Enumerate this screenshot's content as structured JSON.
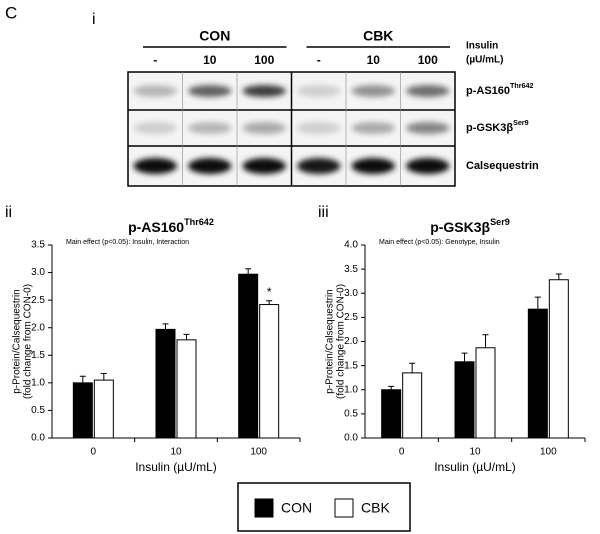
{
  "panel_label": "C",
  "blot": {
    "label": "i",
    "groups": [
      "CON",
      "CBK"
    ],
    "lanes": [
      "-",
      "10",
      "100",
      "-",
      "10",
      "100"
    ],
    "lane_header": [
      "Insulin",
      "(µU/mL)"
    ],
    "rows": [
      {
        "base": "p-AS160",
        "sup": "Thr642"
      },
      {
        "base": "p-GSK3β",
        "sup": "Ser9"
      },
      {
        "base": "Calsequestrin",
        "sup": ""
      }
    ]
  },
  "legend_title": null,
  "chart_data": [
    {
      "type": "bar",
      "panel": "ii",
      "title": {
        "base": "p-AS160",
        "sup": "Thr642"
      },
      "annotation": "Main effect (p<0.05): Insulin, Interaction",
      "ylabel": [
        "p-Protein/Calsequestrin",
        "(fold change from CON-0)"
      ],
      "xlabel": "Insulin (µU/mL)",
      "categories": [
        "0",
        "10",
        "100"
      ],
      "series": [
        {
          "name": "CON",
          "color": "#000000",
          "values": [
            1.0,
            1.97,
            2.97
          ],
          "errors": [
            0.12,
            0.1,
            0.1
          ]
        },
        {
          "name": "CBK",
          "color": "#ffffff",
          "values": [
            1.05,
            1.78,
            2.42
          ],
          "errors": [
            0.12,
            0.1,
            0.07
          ]
        }
      ],
      "significance": {
        "label": "*",
        "series": 1,
        "category": 2
      },
      "ylim": [
        0,
        3.5
      ],
      "yticks": [
        {
          "value": 0,
          "label": "0.0"
        },
        {
          "value": 0.5,
          "label": "0.5"
        },
        {
          "value": 1,
          "label": "1.0"
        },
        {
          "value": 1.5,
          "label": "1.5"
        },
        {
          "value": 2,
          "label": "2.0"
        },
        {
          "value": 2.5,
          "label": "2.5"
        },
        {
          "value": 3,
          "label": "3.0"
        },
        {
          "value": 3.5,
          "label": "3.5"
        }
      ]
    },
    {
      "type": "bar",
      "panel": "iii",
      "title": {
        "base": "p-GSK3β",
        "sup": "Ser9"
      },
      "annotation": "Main effect (p<0.05): Genotype, Insulin",
      "ylabel": [
        "p-Protein/Calsequestrin",
        "(fold change from CON-0)"
      ],
      "xlabel": "Insulin (µU/mL)",
      "categories": [
        "0",
        "10",
        "100"
      ],
      "series": [
        {
          "name": "CON",
          "color": "#000000",
          "values": [
            1.0,
            1.58,
            2.67
          ],
          "errors": [
            0.07,
            0.18,
            0.25
          ]
        },
        {
          "name": "CBK",
          "color": "#ffffff",
          "values": [
            1.35,
            1.87,
            3.28
          ],
          "errors": [
            0.2,
            0.27,
            0.12
          ]
        }
      ],
      "ylim": [
        0,
        4
      ],
      "yticks": [
        {
          "value": 0,
          "label": "0.0"
        },
        {
          "value": 0.5,
          "label": "0.5"
        },
        {
          "value": 1,
          "label": "1.0"
        },
        {
          "value": 1.5,
          "label": "1.5"
        },
        {
          "value": 2,
          "label": "2.0"
        },
        {
          "value": 2.5,
          "label": "2.5"
        },
        {
          "value": 3,
          "label": "3.0"
        },
        {
          "value": 3.5,
          "label": "3.5"
        },
        {
          "value": 4,
          "label": "4.0"
        }
      ]
    }
  ]
}
